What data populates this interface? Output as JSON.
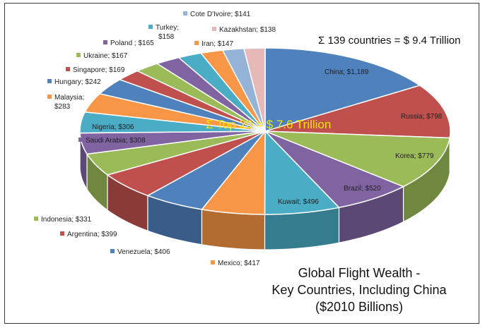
{
  "chart_data": {
    "type": "pie",
    "style": "3d",
    "total_annotation": "Σ 139 countries = $ 9.4 Trillion",
    "top20_annotation": "Σ Top 20 = $ 7.6 Trillion",
    "caption_lines": [
      "Global Flight Wealth -",
      "Key Countries, Including China",
      "($2010 Billions)"
    ],
    "unit": "$2010 Billions",
    "slices": [
      {
        "country": "China",
        "value": 1189,
        "label": "China; $1,189",
        "color": "#4f81bd"
      },
      {
        "country": "Russia",
        "value": 798,
        "label": "Russia; $798",
        "color": "#c0504d"
      },
      {
        "country": "Korea",
        "value": 779,
        "label": "Korea; $779",
        "color": "#9bbb59"
      },
      {
        "country": "Brazil",
        "value": 520,
        "label": "Brazil; $520",
        "color": "#8064a2"
      },
      {
        "country": "Kuwait",
        "value": 496,
        "label": "Kuwait; $496",
        "color": "#4bacc6"
      },
      {
        "country": "Mexico",
        "value": 417,
        "label": "Mexico; $417",
        "color": "#f79646"
      },
      {
        "country": "Venezuela",
        "value": 406,
        "label": "Venezuela; $406",
        "color": "#4f81bd"
      },
      {
        "country": "Argentina",
        "value": 399,
        "label": "Argentina; $399",
        "color": "#c0504d"
      },
      {
        "country": "Indonesia",
        "value": 331,
        "label": "Indonesia; $331",
        "color": "#9bbb59"
      },
      {
        "country": "Saudi Arabia",
        "value": 308,
        "label": "Saudi Arabia; $308",
        "color": "#8064a2"
      },
      {
        "country": "Nigeria",
        "value": 306,
        "label": "Nigeria; $306",
        "color": "#4bacc6"
      },
      {
        "country": "Malaysia",
        "value": 283,
        "label": "Malaysia; $283",
        "color": "#f79646"
      },
      {
        "country": "Hungary",
        "value": 242,
        "label": "Hungary; $242",
        "color": "#4f81bd"
      },
      {
        "country": "Singapore",
        "value": 169,
        "label": "Singapore; $169",
        "color": "#c0504d"
      },
      {
        "country": "Ukraine",
        "value": 167,
        "label": "Ukraine; $167",
        "color": "#9bbb59"
      },
      {
        "country": "Poland",
        "value": 165,
        "label": "Poland ; $165",
        "color": "#8064a2"
      },
      {
        "country": "Turkey",
        "value": 158,
        "label": "Turkey; $158",
        "color": "#4bacc6"
      },
      {
        "country": "Iran",
        "value": 147,
        "label": "Iran; $147",
        "color": "#f79646"
      },
      {
        "country": "Cote D'Ivoire",
        "value": 141,
        "label": "Cote D'Ivoire; $141",
        "color": "#95b3d7"
      },
      {
        "country": "Kazakhstan",
        "value": 138,
        "label": "Kazakhstan; $138",
        "color": "#e6b9b8"
      }
    ]
  }
}
